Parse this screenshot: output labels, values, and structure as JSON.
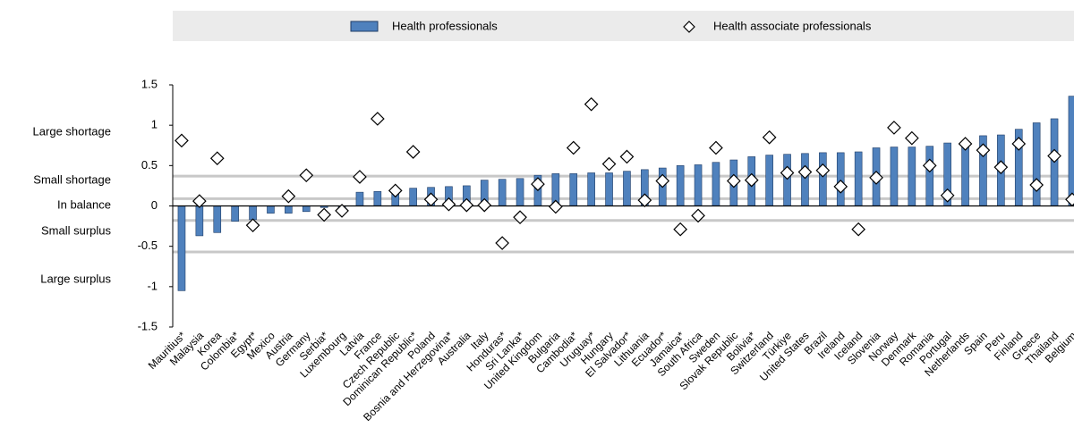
{
  "chart_data": {
    "type": "bar",
    "categories": [
      "Mauritius*",
      "Malaysia",
      "Korea",
      "Colombia*",
      "Egypt*",
      "Mexico",
      "Austria",
      "Germany",
      "Serbia*",
      "Luxembourg",
      "Latvia",
      "France",
      "Czech Republic",
      "Dominican Republic*",
      "Poland",
      "Bosnia and Herzegovina*",
      "Australia",
      "Italy",
      "Honduras*",
      "Sri Lanka*",
      "United Kingdom",
      "Bulgaria",
      "Cambodia*",
      "Uruguay*",
      "Hungary",
      "El Salvador*",
      "Lithuania",
      "Ecuador*",
      "Jamaica*",
      "South Africa",
      "Sweden",
      "Slovak Republic",
      "Bolivia*",
      "Switzerland",
      "Türkiye",
      "United States",
      "Brazil",
      "Ireland",
      "Iceland",
      "Slovenia",
      "Norway",
      "Denmark",
      "Romania",
      "Portugal",
      "Netherlands",
      "Spain",
      "Peru",
      "Finland",
      "Greece",
      "Thailand",
      "Belgium"
    ],
    "series": [
      {
        "name": "Health professionals",
        "type": "bar",
        "color": "#4f81bd",
        "values": [
          -1.05,
          -0.37,
          -0.33,
          -0.19,
          -0.17,
          -0.09,
          -0.09,
          -0.07,
          -0.02,
          -0.02,
          0.17,
          0.18,
          0.19,
          0.22,
          0.23,
          0.24,
          0.25,
          0.32,
          0.33,
          0.34,
          0.38,
          0.4,
          0.4,
          0.41,
          0.41,
          0.43,
          0.45,
          0.47,
          0.5,
          0.51,
          0.54,
          0.57,
          0.61,
          0.63,
          0.64,
          0.65,
          0.66,
          0.66,
          0.67,
          0.72,
          0.73,
          0.73,
          0.74,
          0.78,
          0.79,
          0.87,
          0.88,
          0.95,
          1.03,
          1.08,
          1.36
        ]
      },
      {
        "name": "Health associate professionals",
        "type": "diamond",
        "color": "#ffffff",
        "values": [
          0.81,
          0.06,
          0.59,
          null,
          -0.24,
          null,
          0.12,
          0.38,
          -0.11,
          -0.06,
          0.36,
          1.08,
          0.19,
          0.67,
          0.08,
          0.02,
          0.01,
          0.01,
          -0.46,
          -0.14,
          0.27,
          -0.01,
          0.72,
          1.26,
          0.52,
          0.61,
          0.07,
          0.31,
          -0.29,
          -0.12,
          0.72,
          0.31,
          0.32,
          0.85,
          0.41,
          0.42,
          0.44,
          0.24,
          -0.29,
          0.35,
          0.97,
          0.84,
          0.5,
          0.13,
          0.77,
          0.69,
          0.48,
          0.77,
          0.26,
          0.62,
          0.08
        ]
      }
    ],
    "ylim": [
      -1.5,
      1.5
    ],
    "yticks": [
      1.5,
      1,
      0.5,
      0,
      -0.5,
      -1,
      -1.5
    ],
    "thresholds": [
      0.37,
      0.09,
      -0.18,
      -0.57
    ],
    "band_labels": [
      "Large shortage",
      "Small shortage",
      "In balance",
      "Small surplus",
      "Large surplus"
    ]
  }
}
